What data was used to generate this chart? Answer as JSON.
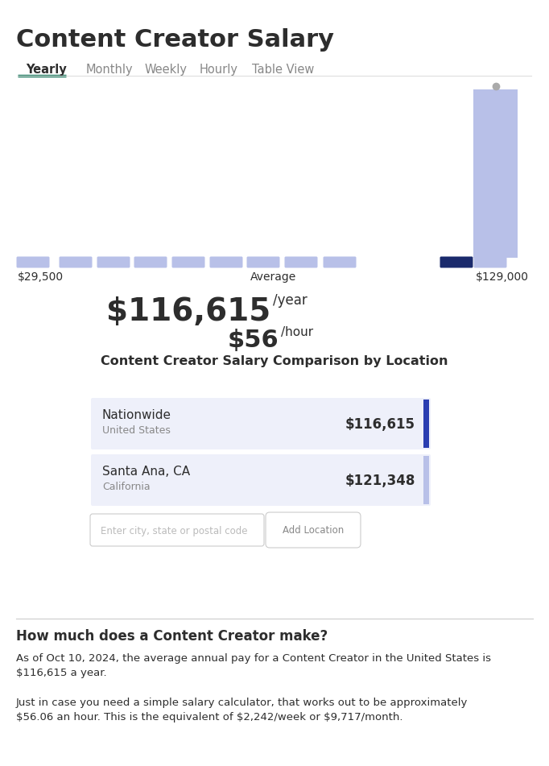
{
  "title": "Content Creator Salary",
  "tabs": [
    "Yearly",
    "Monthly",
    "Weekly",
    "Hourly",
    "Table View"
  ],
  "active_tab": "Yearly",
  "tab_underline_color": "#1a7a5e",
  "tab_line_color": "#dddddd",
  "bar_color_light": "#b8c0e8",
  "bar_color_dark": "#1a2a6c",
  "bar_min_label": "$29,500",
  "bar_avg_label": "Average",
  "bar_max_label": "$129,000",
  "salary_main": "$116,615",
  "salary_main_suffix": "/year",
  "salary_hourly": "$56",
  "salary_hourly_suffix": "/hour",
  "comparison_title": "Content Creator Salary Comparison by Location",
  "location1_name": "Nationwide",
  "location1_sub": "United States",
  "location1_salary": "$116,615",
  "location1_bar_color": "#2a3eb1",
  "location2_name": "Santa Ana, CA",
  "location2_sub": "California",
  "location2_salary": "$121,348",
  "location2_bar_color": "#b8c0e8",
  "location_bg_color": "#eef0fa",
  "input_placeholder": "Enter city, state or postal code",
  "button_text": "Add Location",
  "divider_color": "#cccccc",
  "section2_title": "How much does a Content Creator make?",
  "section2_body1_line1": "As of Oct 10, 2024, the average annual pay for a Content Creator in the United States is",
  "section2_body1_line2": "$116,615 a year.",
  "section2_body2_line1": "Just in case you need a simple salary calculator, that works out to be approximately",
  "section2_body2_line2": "$56.06 an hour. This is the equivalent of $2,242/week or $9,717/month.",
  "bg_color": "#ffffff",
  "text_dark": "#2d2d2d",
  "text_gray": "#888888"
}
